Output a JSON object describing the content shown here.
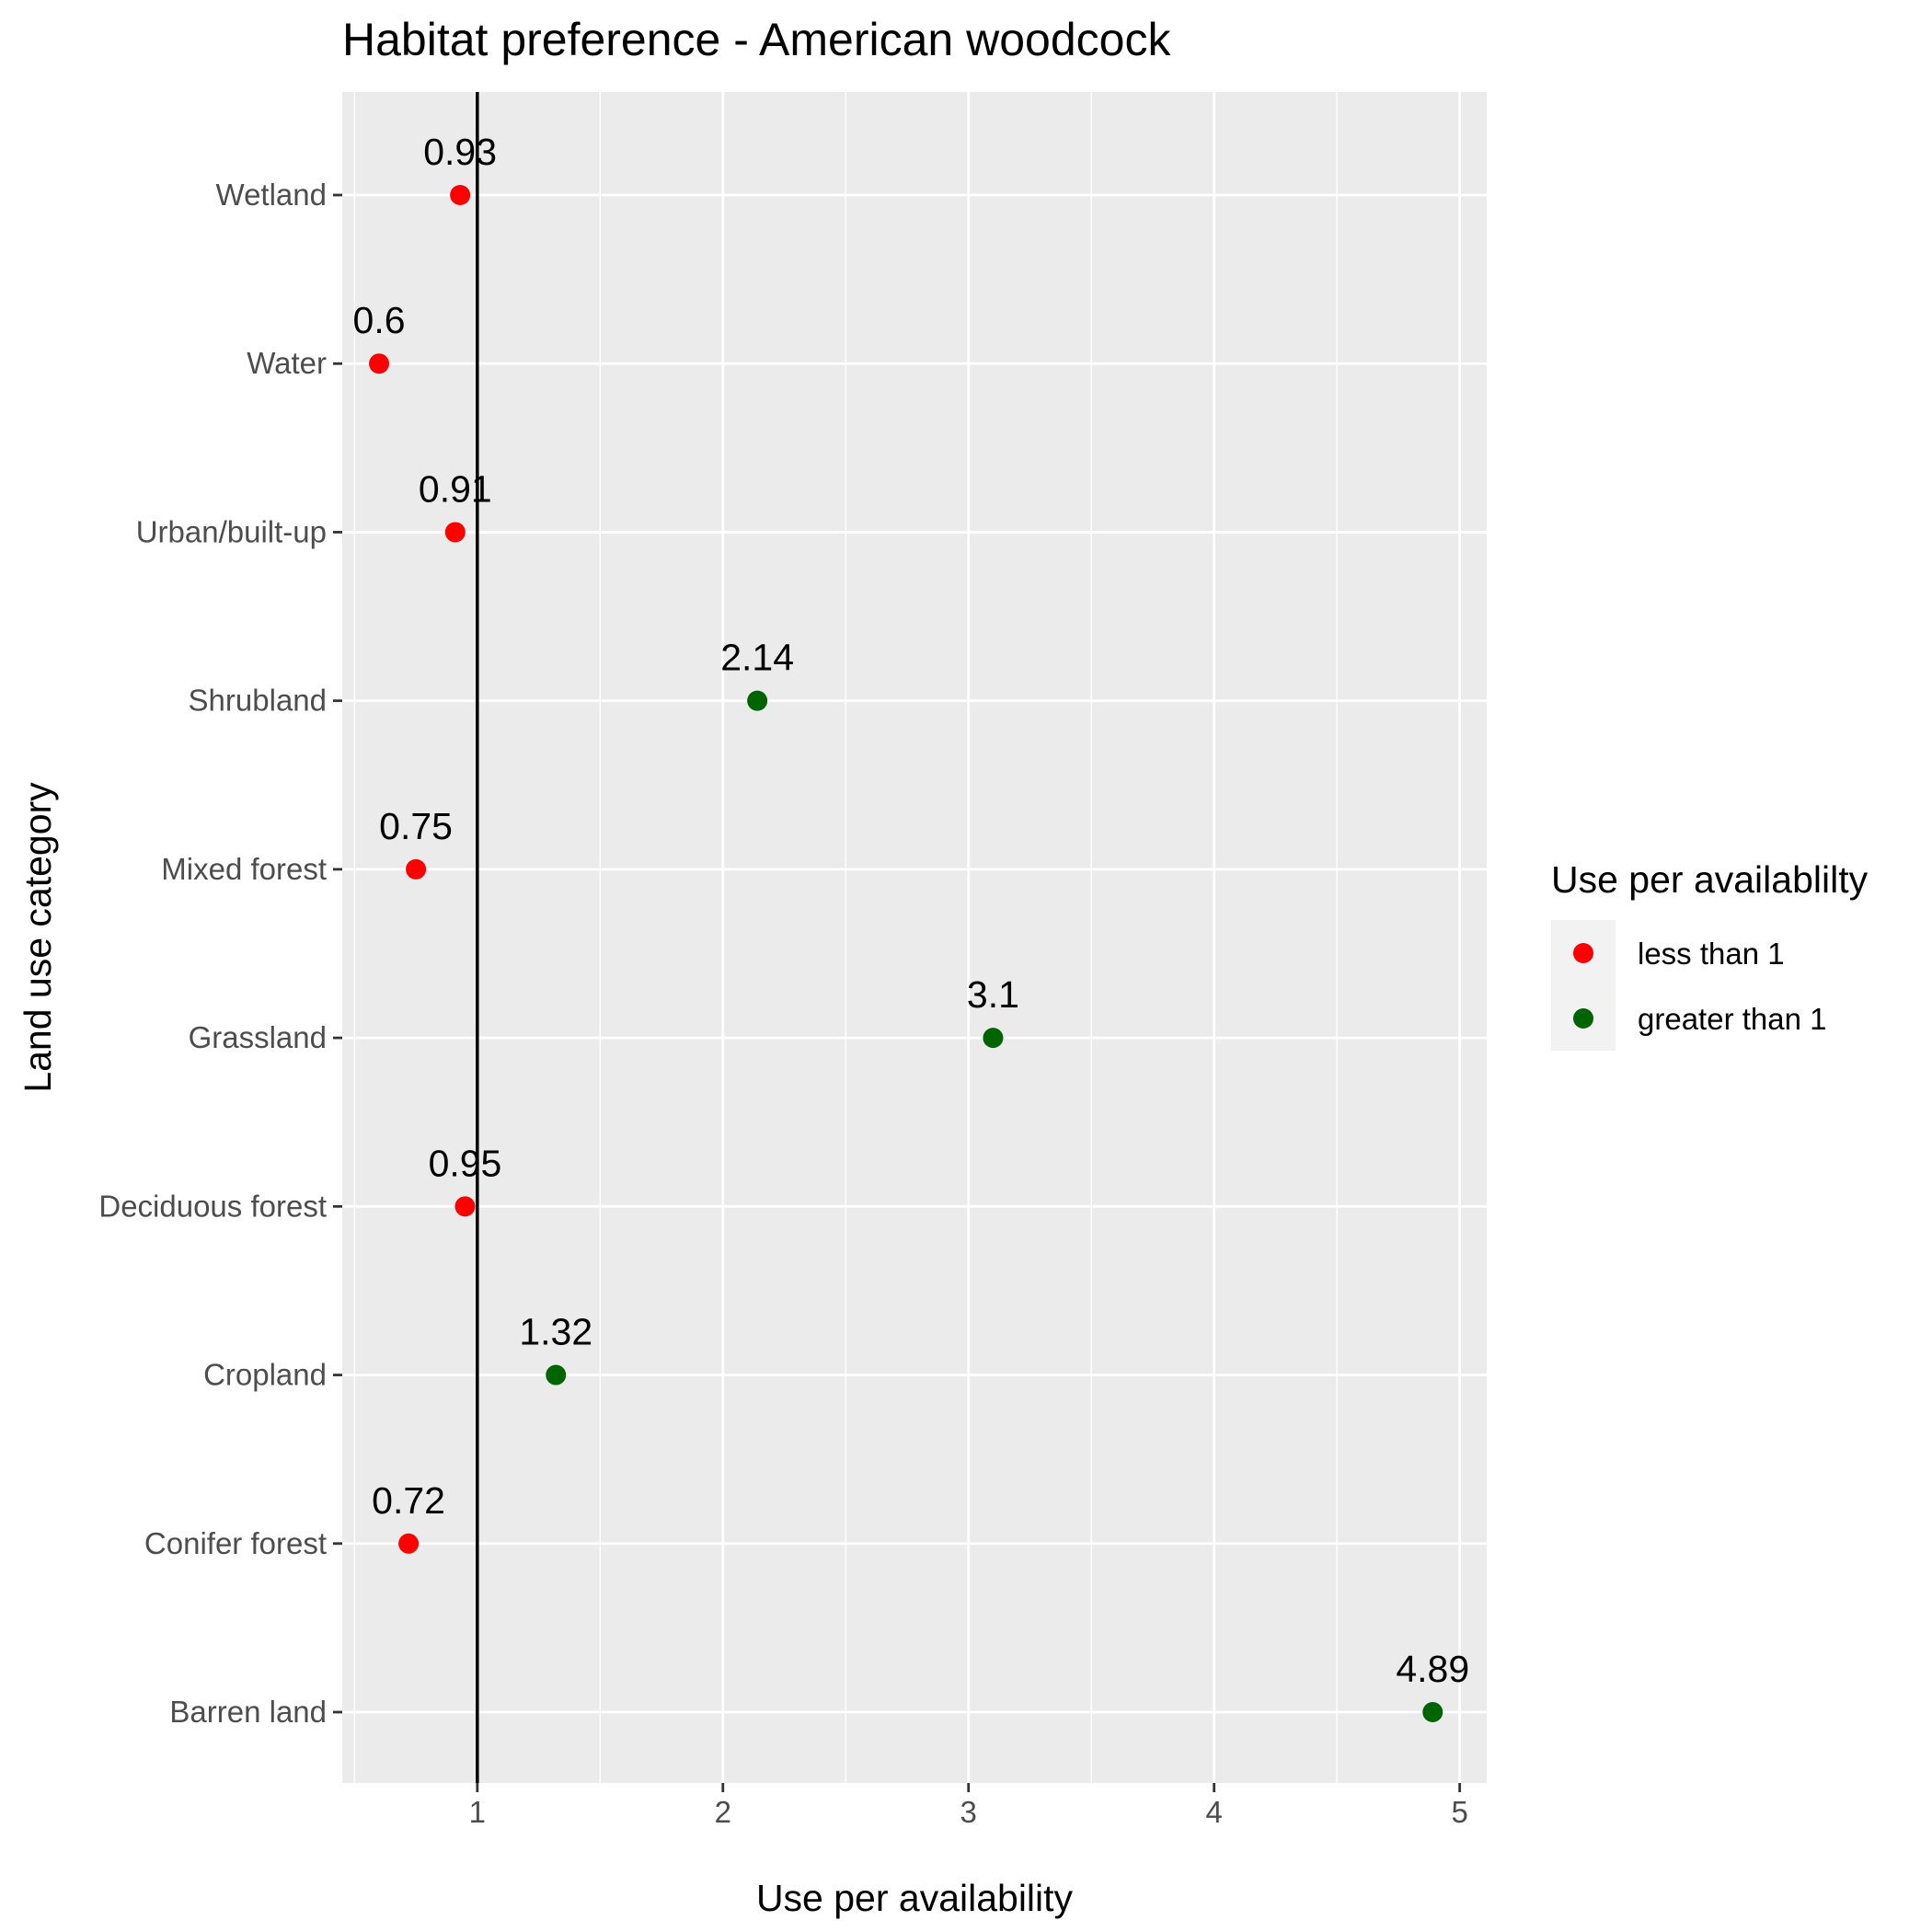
{
  "chart_data": {
    "type": "scatter",
    "title": "Habitat preference - American woodcock",
    "xlabel": "Use per availability",
    "ylabel": "Land use category",
    "xlim": [
      0.45,
      5.11
    ],
    "xticks": [
      1,
      2,
      3,
      4,
      5
    ],
    "reference_line_x": 1,
    "grid": true,
    "legend": {
      "title": "Use per availablilty",
      "position": "right",
      "entries": [
        {
          "label": "less than 1",
          "color": "#ff0000"
        },
        {
          "label": "greater than 1",
          "color": "#006400"
        }
      ]
    },
    "categories": [
      "Wetland",
      "Water",
      "Urban/built-up",
      "Shrubland",
      "Mixed forest",
      "Grassland",
      "Deciduous forest",
      "Cropland",
      "Conifer forest",
      "Barren land"
    ],
    "points": [
      {
        "category": "Wetland",
        "x": 0.93,
        "label": "0.93",
        "group": "less than 1"
      },
      {
        "category": "Water",
        "x": 0.6,
        "label": "0.6",
        "group": "less than 1"
      },
      {
        "category": "Urban/built-up",
        "x": 0.91,
        "label": "0.91",
        "group": "less than 1"
      },
      {
        "category": "Shrubland",
        "x": 2.14,
        "label": "2.14",
        "group": "greater than 1"
      },
      {
        "category": "Mixed forest",
        "x": 0.75,
        "label": "0.75",
        "group": "less than 1"
      },
      {
        "category": "Grassland",
        "x": 3.1,
        "label": "3.1",
        "group": "greater than 1"
      },
      {
        "category": "Deciduous forest",
        "x": 0.95,
        "label": "0.95",
        "group": "less than 1"
      },
      {
        "category": "Cropland",
        "x": 1.32,
        "label": "1.32",
        "group": "greater than 1"
      },
      {
        "category": "Conifer forest",
        "x": 0.72,
        "label": "0.72",
        "group": "less than 1"
      },
      {
        "category": "Barren land",
        "x": 4.89,
        "label": "4.89",
        "group": "greater than 1"
      }
    ]
  },
  "colors": {
    "panel_background": "#ebebeb",
    "grid_line": "#ffffff",
    "reference_line": "#000000",
    "legend_key_background": "#f2f2f2"
  }
}
